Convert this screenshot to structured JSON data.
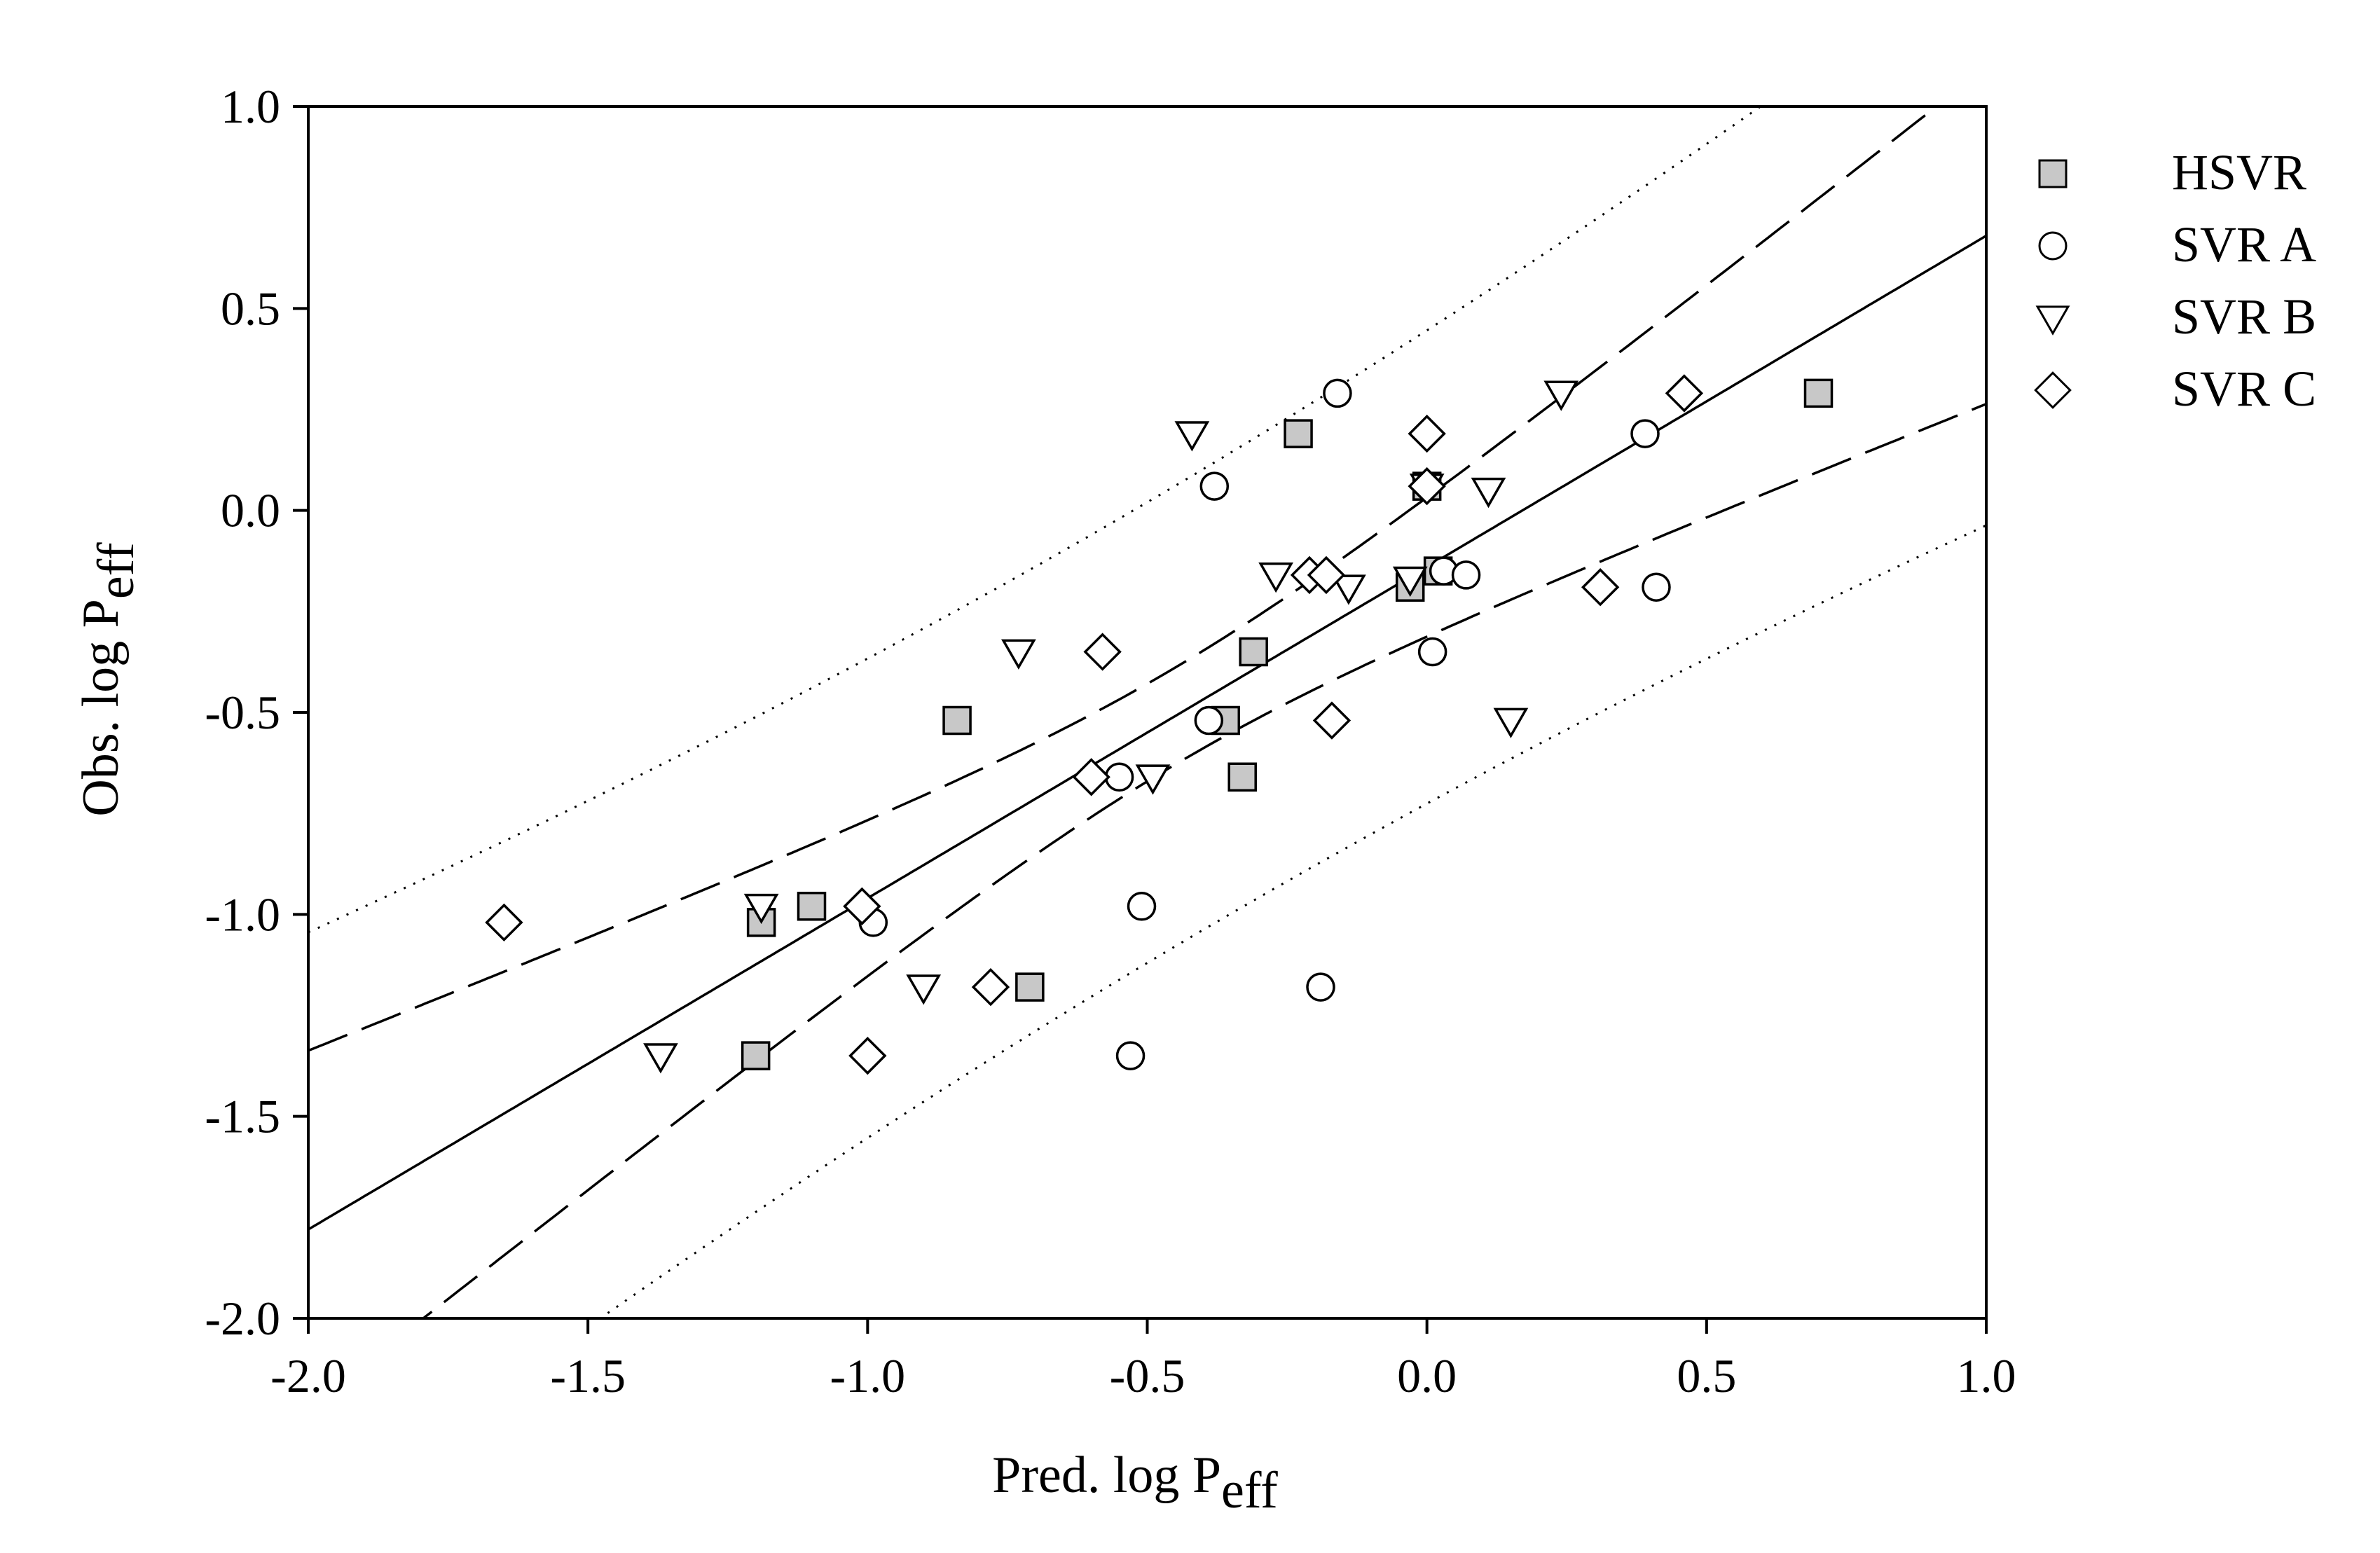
{
  "chart_data": {
    "type": "scatter",
    "xlabel": "Pred. log P",
    "xlabel_sub": "eff",
    "ylabel": "Obs. log P",
    "ylabel_sub": "eff",
    "xlim": [
      -2.0,
      1.0
    ],
    "ylim": [
      -2.0,
      1.0
    ],
    "x_ticks": [
      -2.0,
      -1.5,
      -1.0,
      -0.5,
      0.0,
      0.5,
      1.0
    ],
    "y_ticks": [
      -2.0,
      -1.5,
      -1.0,
      -0.5,
      0.0,
      0.5,
      1.0
    ],
    "x_tick_labels": [
      "-2.0",
      "-1.5",
      "-1.0",
      "-0.5",
      "0.0",
      "0.5",
      "1.0"
    ],
    "y_tick_labels": [
      "-2.0",
      "-1.5",
      "-1.0",
      "-0.5",
      "0.0",
      "0.5",
      "1.0"
    ],
    "grid": false,
    "legend_position": "outside-right-top",
    "series": [
      {
        "name": "HSVR",
        "marker": "square",
        "fill": "#c8c8c8",
        "points": [
          [
            -1.2,
            -1.35
          ],
          [
            -1.19,
            -1.02
          ],
          [
            -1.1,
            -0.98
          ],
          [
            -0.84,
            -0.52
          ],
          [
            -0.71,
            -1.18
          ],
          [
            -0.36,
            -0.52
          ],
          [
            -0.33,
            -0.66
          ],
          [
            -0.31,
            -0.35
          ],
          [
            -0.23,
            0.19
          ],
          [
            -0.03,
            -0.19
          ],
          [
            0.0,
            0.06
          ],
          [
            0.02,
            -0.15
          ],
          [
            0.7,
            0.29
          ]
        ]
      },
      {
        "name": "SVR A",
        "marker": "circle",
        "fill": "#ffffff",
        "points": [
          [
            -0.99,
            -1.02
          ],
          [
            -0.53,
            -1.35
          ],
          [
            -0.51,
            -0.98
          ],
          [
            -0.55,
            -0.66
          ],
          [
            -0.39,
            -0.52
          ],
          [
            -0.38,
            0.06
          ],
          [
            -0.19,
            -1.18
          ],
          [
            -0.16,
            0.29
          ],
          [
            0.01,
            -0.35
          ],
          [
            0.03,
            -0.15
          ],
          [
            0.07,
            -0.16
          ],
          [
            0.39,
            0.19
          ],
          [
            0.41,
            -0.19
          ]
        ]
      },
      {
        "name": "SVR B",
        "marker": "triangle-down",
        "fill": "#ffffff",
        "points": [
          [
            -1.37,
            -1.35
          ],
          [
            -1.19,
            -0.98
          ],
          [
            -0.9,
            -1.18
          ],
          [
            -0.73,
            -0.35
          ],
          [
            -0.49,
            -0.66
          ],
          [
            -0.42,
            0.19
          ],
          [
            -0.27,
            -0.16
          ],
          [
            -0.14,
            -0.19
          ],
          [
            -0.03,
            -0.17
          ],
          [
            0.0,
            0.06
          ],
          [
            0.11,
            0.05
          ],
          [
            0.15,
            -0.52
          ],
          [
            0.24,
            0.29
          ]
        ]
      },
      {
        "name": "SVR C",
        "marker": "diamond",
        "fill": "#ffffff",
        "points": [
          [
            -1.65,
            -1.02
          ],
          [
            -1.01,
            -0.98
          ],
          [
            -1.0,
            -1.35
          ],
          [
            -0.78,
            -1.18
          ],
          [
            -0.6,
            -0.66
          ],
          [
            -0.58,
            -0.35
          ],
          [
            -0.21,
            -0.16
          ],
          [
            -0.18,
            -0.16
          ],
          [
            -0.17,
            -0.52
          ],
          [
            0.0,
            0.19
          ],
          [
            0.0,
            0.06
          ],
          [
            0.31,
            -0.19
          ],
          [
            0.46,
            0.29
          ]
        ]
      }
    ],
    "regression": {
      "slope": 0.82,
      "intercept": -0.14,
      "style": "solid"
    },
    "confidence_band": {
      "style": "dashed",
      "half_width_at_mean": 0.12,
      "spread": 0.275
    },
    "prediction_band": {
      "style": "dotted",
      "half_width_at_mean": 0.57,
      "spread": 0.3
    }
  }
}
